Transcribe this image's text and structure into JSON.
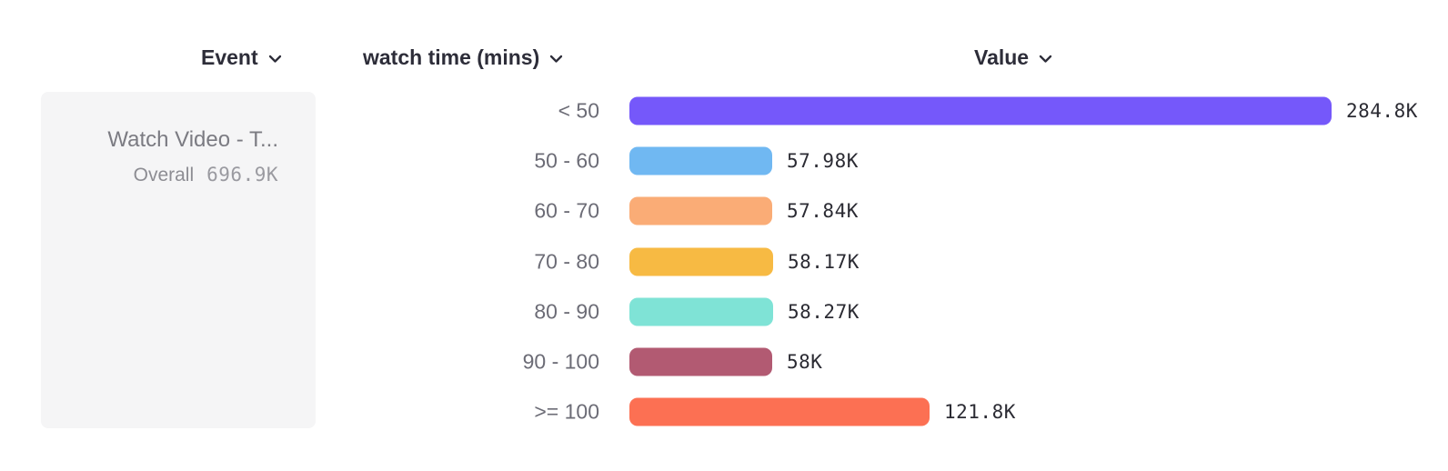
{
  "header": {
    "event_label": "Event",
    "dimension_label": "watch time (mins)",
    "value_label": "Value"
  },
  "event_card": {
    "title": "Watch Video - T...",
    "overall_label": "Overall",
    "overall_value": "696.9K"
  },
  "chart_data": {
    "type": "bar",
    "orientation": "horizontal",
    "categories": [
      "< 50",
      "50 - 60",
      "60 - 70",
      "70 - 80",
      "80 - 90",
      "90 - 100",
      ">= 100"
    ],
    "values": [
      284800,
      57980,
      57840,
      58170,
      58270,
      58000,
      121800
    ],
    "value_labels": [
      "284.8K",
      "57.98K",
      "57.84K",
      "58.17K",
      "58.27K",
      "58K",
      "121.8K"
    ],
    "colors": [
      "#7558fa",
      "#70b8f2",
      "#faac76",
      "#f7ba43",
      "#7fe3d6",
      "#b25a72",
      "#fc7053"
    ],
    "max_value": 284800,
    "xlabel": "Value",
    "ylabel": "watch time (mins)",
    "series_label": "Event",
    "legend": false,
    "grid": false,
    "axis_ticks_visible": false
  }
}
